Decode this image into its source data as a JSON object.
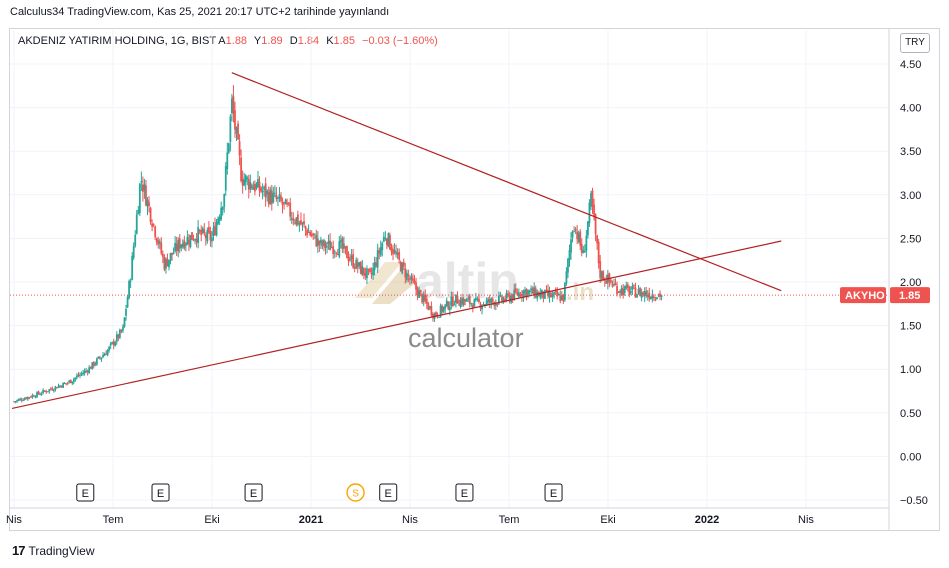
{
  "header": {
    "published": "Calculus34 TradingView.com, Kas 25, 2021 20:17 UTC+2 tarihinde yayınlandı"
  },
  "legend": {
    "symbol": "AKDENIZ YATIRIM HOLDING, 1G, BIST",
    "open_label": "A",
    "open": "1.88",
    "high_label": "Y",
    "high": "1.89",
    "low_label": "D",
    "low": "1.84",
    "close_label": "K",
    "close": "1.85",
    "change": "−0.03 (−1.60%)"
  },
  "currency": "TRY",
  "price_tag": {
    "symbol": "AKYHO",
    "price": "1.85"
  },
  "watermark": {
    "main": "altin",
    "tld": ".in",
    "sub": "calculator"
  },
  "footer": {
    "brand": "TradingView"
  },
  "colors": {
    "up": "#26a69a",
    "down": "#ef5350",
    "trendline": "#b22222",
    "grid": "#f0f3fa",
    "tag": "#ef5350"
  },
  "chart_data": {
    "type": "candlestick",
    "symbol": "AKYHO",
    "exchange": "BIST",
    "interval": "1G",
    "ylim": [
      -0.55,
      4.65
    ],
    "y_ticks": [
      "4.50",
      "4.00",
      "3.50",
      "3.00",
      "2.50",
      "2.00",
      "1.50",
      "1.00",
      "0.50",
      "0.00",
      "−0.50"
    ],
    "y_tick_values": [
      4.5,
      4.0,
      3.5,
      3.0,
      2.5,
      2.0,
      1.5,
      1.0,
      0.5,
      0.0,
      -0.5
    ],
    "x_tick_labels": [
      "Nis",
      "Tem",
      "Eki",
      "2021",
      "Nis",
      "Tem",
      "Eki",
      "2022",
      "Nis"
    ],
    "x_tick_positions": [
      0,
      1,
      2,
      3,
      4,
      5,
      6,
      7,
      8
    ],
    "last_price": 1.85,
    "price_path": [
      {
        "t": 0.0,
        "p": 0.63
      },
      {
        "t": 0.25,
        "p": 0.72
      },
      {
        "t": 0.55,
        "p": 0.85
      },
      {
        "t": 0.75,
        "p": 1.0
      },
      {
        "t": 0.95,
        "p": 1.22
      },
      {
        "t": 1.1,
        "p": 1.45
      },
      {
        "t": 1.18,
        "p": 2.1
      },
      {
        "t": 1.28,
        "p": 3.2
      },
      {
        "t": 1.4,
        "p": 2.7
      },
      {
        "t": 1.52,
        "p": 2.2
      },
      {
        "t": 1.68,
        "p": 2.45
      },
      {
        "t": 1.85,
        "p": 2.55
      },
      {
        "t": 2.0,
        "p": 2.5
      },
      {
        "t": 2.12,
        "p": 3.0
      },
      {
        "t": 2.2,
        "p": 4.05
      },
      {
        "t": 2.3,
        "p": 3.2
      },
      {
        "t": 2.5,
        "p": 3.05
      },
      {
        "t": 2.7,
        "p": 2.9
      },
      {
        "t": 2.95,
        "p": 2.6
      },
      {
        "t": 3.1,
        "p": 2.42
      },
      {
        "t": 3.3,
        "p": 2.4
      },
      {
        "t": 3.45,
        "p": 2.2
      },
      {
        "t": 3.6,
        "p": 2.05
      },
      {
        "t": 3.75,
        "p": 2.55
      },
      {
        "t": 3.9,
        "p": 2.2
      },
      {
        "t": 4.1,
        "p": 1.85
      },
      {
        "t": 4.25,
        "p": 1.62
      },
      {
        "t": 4.45,
        "p": 1.8
      },
      {
        "t": 4.7,
        "p": 1.75
      },
      {
        "t": 4.95,
        "p": 1.8
      },
      {
        "t": 5.15,
        "p": 1.9
      },
      {
        "t": 5.35,
        "p": 1.85
      },
      {
        "t": 5.55,
        "p": 1.82
      },
      {
        "t": 5.65,
        "p": 2.7
      },
      {
        "t": 5.75,
        "p": 2.3
      },
      {
        "t": 5.83,
        "p": 2.95
      },
      {
        "t": 5.92,
        "p": 2.1
      },
      {
        "t": 6.1,
        "p": 1.92
      },
      {
        "t": 6.3,
        "p": 1.88
      },
      {
        "t": 6.55,
        "p": 1.85
      }
    ],
    "trendlines": [
      {
        "name": "descending",
        "from": {
          "t": 2.2,
          "p": 4.4
        },
        "to": {
          "t": 7.75,
          "p": 1.9
        }
      },
      {
        "name": "ascending",
        "from": {
          "t": -0.02,
          "p": 0.55
        },
        "to": {
          "t": 7.75,
          "p": 2.47
        }
      }
    ],
    "earnings_markers_t": [
      0.72,
      1.48,
      2.42,
      3.78,
      4.55,
      5.45
    ],
    "dividend_markers_t": [
      3.45
    ]
  }
}
